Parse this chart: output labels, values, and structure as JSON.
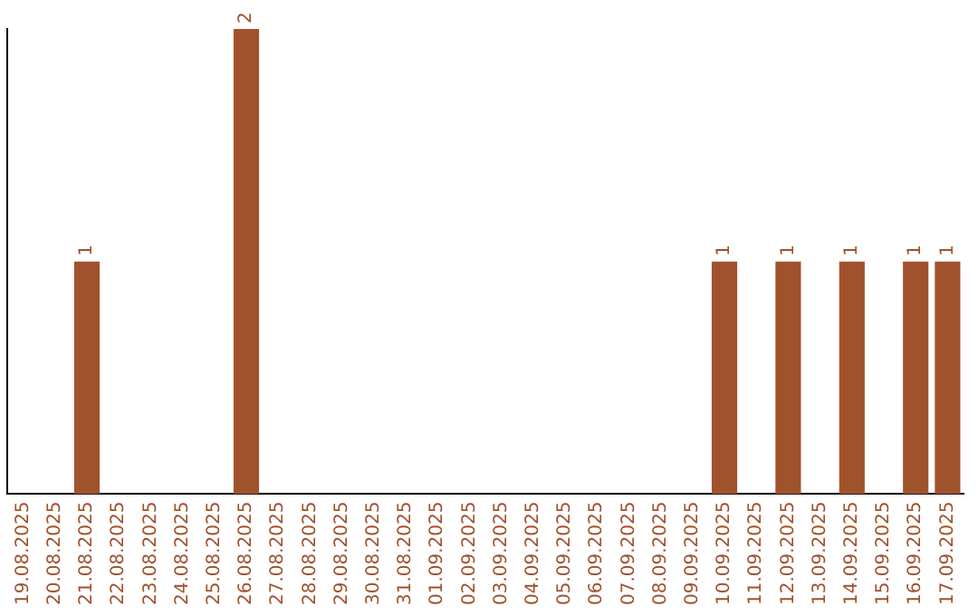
{
  "chart_data": {
    "type": "bar",
    "categories": [
      "19.08.2025",
      "20.08.2025",
      "21.08.2025",
      "22.08.2025",
      "23.08.2025",
      "24.08.2025",
      "25.08.2025",
      "26.08.2025",
      "27.08.2025",
      "28.08.2025",
      "29.08.2025",
      "30.08.2025",
      "31.08.2025",
      "01.09.2025",
      "02.09.2025",
      "03.09.2025",
      "04.09.2025",
      "05.09.2025",
      "06.09.2025",
      "07.09.2025",
      "08.09.2025",
      "09.09.2025",
      "10.09.2025",
      "11.09.2025",
      "12.09.2025",
      "13.09.2025",
      "14.09.2025",
      "15.09.2025",
      "16.09.2025",
      "17.09.2025"
    ],
    "values": [
      0,
      0,
      1,
      0,
      0,
      0,
      0,
      2,
      0,
      0,
      0,
      0,
      0,
      0,
      0,
      0,
      0,
      0,
      0,
      0,
      0,
      0,
      1,
      0,
      1,
      0,
      1,
      0,
      1,
      1
    ],
    "value_labels": [
      null,
      null,
      "1",
      null,
      null,
      null,
      null,
      "2",
      null,
      null,
      null,
      null,
      null,
      null,
      null,
      null,
      null,
      null,
      null,
      null,
      null,
      null,
      "1",
      null,
      "1",
      null,
      "1",
      null,
      "1",
      "1"
    ],
    "color": "#a0522d",
    "ylim": [
      0,
      2
    ],
    "tick_labels": "x",
    "grid": false,
    "legend": false
  }
}
